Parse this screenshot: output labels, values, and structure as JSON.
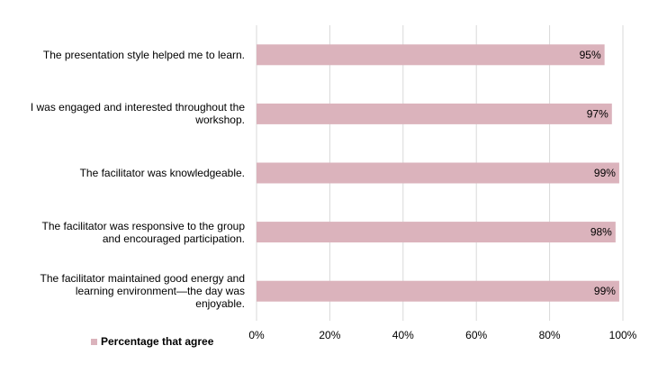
{
  "chart_data": {
    "type": "bar",
    "orientation": "horizontal",
    "categories": [
      "The presentation style helped me to learn.",
      "I was engaged and interested throughout the workshop.",
      "The facilitator was knowledgeable.",
      "The facilitator was responsive to the group and encouraged participation.",
      "The facilitator maintained good energy and learning environment—the day was enjoyable."
    ],
    "category_lines": [
      [
        "The presentation style helped me to learn."
      ],
      [
        "I was engaged and interested throughout the",
        "workshop."
      ],
      [
        "The facilitator was knowledgeable."
      ],
      [
        "The facilitator was responsive to the group",
        "and encouraged participation."
      ],
      [
        "The facilitator maintained good energy and",
        "learning environment—the day was",
        "enjoyable."
      ]
    ],
    "series": [
      {
        "name": "Percentage that agree",
        "values": [
          95,
          97,
          99,
          98,
          99
        ]
      }
    ],
    "data_labels": [
      "95%",
      "97%",
      "99%",
      "98%",
      "99%"
    ],
    "xlim": [
      0,
      100
    ],
    "x_ticks": [
      "0%",
      "20%",
      "40%",
      "60%",
      "80%",
      "100%"
    ],
    "x_tick_values": [
      0,
      20,
      40,
      60,
      80,
      100
    ],
    "grid": true,
    "legend_position": "bottom-left",
    "colors": {
      "bar": "#dbb3bc",
      "grid": "#d9d9d9",
      "text": "#000000"
    }
  }
}
